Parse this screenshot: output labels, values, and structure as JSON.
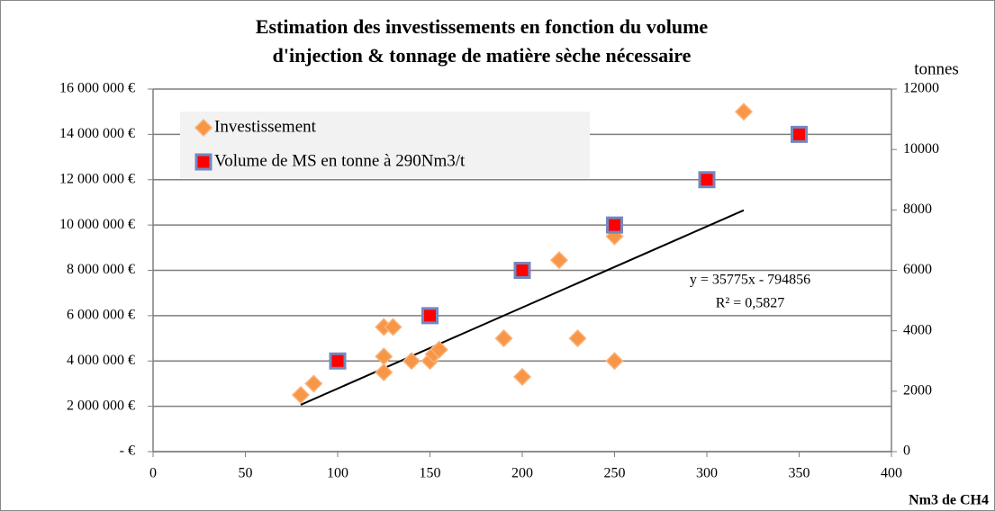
{
  "chart_data": {
    "type": "scatter",
    "title": [
      "Estimation des investissements en fonction du volume",
      "d'injection & tonnage de matière sèche nécessaire"
    ],
    "x_label": "Nm3 de CH4",
    "y2_label": "tonnes",
    "xlim": [
      0,
      400
    ],
    "xticks": [
      0,
      50,
      100,
      150,
      200,
      250,
      300,
      350,
      400
    ],
    "ylim": [
      0,
      16000000
    ],
    "yticks": [
      {
        "value": 0,
        "label": "-   €"
      },
      {
        "value": 2000000,
        "label": "2 000 000 €"
      },
      {
        "value": 4000000,
        "label": "4 000 000 €"
      },
      {
        "value": 6000000,
        "label": "6 000 000 €"
      },
      {
        "value": 8000000,
        "label": "8 000 000 €"
      },
      {
        "value": 10000000,
        "label": "10 000 000 €"
      },
      {
        "value": 12000000,
        "label": "12 000 000 €"
      },
      {
        "value": 14000000,
        "label": "14 000 000 €"
      },
      {
        "value": 16000000,
        "label": "16 000 000 €"
      }
    ],
    "y2lim": [
      0,
      12000
    ],
    "y2ticks": [
      0,
      2000,
      4000,
      6000,
      8000,
      10000,
      12000
    ],
    "grid": true,
    "legend": "top-left",
    "series": [
      {
        "name": "Investissement",
        "color": "#f79646",
        "marker": "diamond",
        "x": [
          80,
          87,
          125,
          130,
          125,
          125,
          140,
          150,
          152,
          155,
          190,
          200,
          220,
          230,
          250,
          250,
          320
        ],
        "values": [
          2500000,
          3000000,
          5500000,
          5500000,
          4200000,
          3500000,
          4000000,
          4000000,
          4300000,
          4500000,
          5000000,
          3300000,
          8450000,
          5000000,
          9500000,
          4000000,
          15000000
        ]
      },
      {
        "name": "Volume de MS en tonne à 290Nm3/t",
        "color": "#ff0000",
        "marker": "square",
        "axis": "y2",
        "x": [
          100,
          150,
          200,
          250,
          300,
          350
        ],
        "values": [
          3000,
          4500,
          6000,
          7500,
          9000,
          10500
        ]
      }
    ],
    "trendline": {
      "x": [
        80,
        320
      ],
      "values": [
        2067144,
        10653144
      ],
      "color": "#000000",
      "annotation": [
        "y = 35775x - 794856",
        "R² = 0,5827"
      ]
    }
  }
}
